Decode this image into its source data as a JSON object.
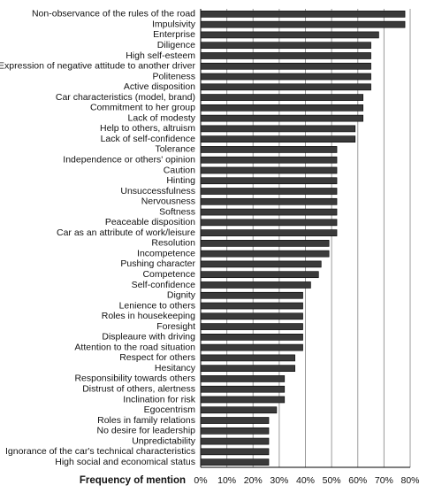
{
  "chart_data": {
    "type": "barh",
    "xlabel": "Frequency of mention",
    "categories": [
      "Non-observance of the rules of the road",
      "Impulsivity",
      "Enterprise",
      "Diligence",
      "High self-esteem",
      "Expression of negative attitude to another driver",
      "Politeness",
      "Active disposition",
      "Car characteristics (model, brand)",
      "Commitment to her group",
      "Lack of modesty",
      "Help to others, altruism",
      "Lack of self-confidence",
      "Tolerance",
      "Independence or others' opinion",
      "Caution",
      "Hinting",
      "Unsuccessfulness",
      "Nervousness",
      "Softness",
      "Peaceable disposition",
      "Car as an attribute of work/leisure",
      "Resolution",
      "Incompetence",
      "Pushing character",
      "Competence",
      "Self-confidence",
      "Dignity",
      "Lenience to others",
      "Roles in housekeeping",
      "Foresight",
      "Displeaure with driving",
      "Attention to the road situation",
      "Respect for others",
      "Hesitancy",
      "Responsibility towards others",
      "Distrust of others, alertness",
      "Inclination for risk",
      "Egocentrism",
      "Roles in family relations",
      "No desire for leadership",
      "Unpredictability",
      "Ignorance of the car's technical characteristics",
      "High social and economical status"
    ],
    "values": [
      78,
      78,
      68,
      65,
      65,
      65,
      65,
      65,
      62,
      62,
      62,
      59,
      59,
      52,
      52,
      52,
      52,
      52,
      52,
      52,
      52,
      52,
      49,
      49,
      46,
      45,
      42,
      39,
      39,
      39,
      39,
      39,
      39,
      36,
      36,
      32,
      32,
      32,
      29,
      26,
      26,
      26,
      26,
      26
    ],
    "color": "#3a3a3a",
    "xlim": [
      0,
      80
    ],
    "xticks": [
      {
        "value": 0,
        "label": "0%"
      },
      {
        "value": 10,
        "label": "10%"
      },
      {
        "value": 20,
        "label": "20%"
      },
      {
        "value": 30,
        "label": "30%"
      },
      {
        "value": 40,
        "label": "40%"
      },
      {
        "value": 50,
        "label": "50%"
      },
      {
        "value": 60,
        "label": "60%"
      },
      {
        "value": 70,
        "label": "70%"
      },
      {
        "value": 80,
        "label": "80%"
      }
    ],
    "grid": true
  }
}
